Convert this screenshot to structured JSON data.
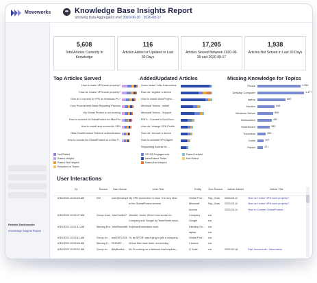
{
  "header": {
    "brand": "Moveworks",
    "title": "Knowledge Base Insights Report",
    "subtitle_prefix": "Showing Data Aggregated over",
    "date_range": "2020-06-30 · 2020-08-17"
  },
  "kpis": [
    {
      "value": "5,608",
      "label": "Total Articles Currently in Knowledge"
    },
    {
      "value": "116",
      "label": "Articles Added or Updated in Last 30 Days"
    },
    {
      "value": "17,205",
      "label": "Articles Served Between 2020-06-30 and 2020-08-17"
    },
    {
      "value": "1,938",
      "label": "Articles Not Served in Last 30 Days"
    }
  ],
  "top_articles": {
    "title": "Top Articles Served",
    "rows": [
      "How to make VPN work properly?",
      "How do I make VPN work properly?",
      "How do I connect to VPN on Windows PC?",
      "Core Procurement Basic Reporting Process",
      "My Global Protect is not working",
      "How to connect to GlobalProtect for Mac Pro",
      "How to install and connect to VPN",
      "Okta Email/Contact Retrieve authentication",
      "How to connect to GlobalProtect on a Mac P..."
    ]
  },
  "added_articles": {
    "title": "Added/Updated Articles",
    "rows": [
      "Zoom Install - Mac Instructions",
      "How do I register a device",
      "How to Install Visio/Project...",
      "Microsoft Teams - Install",
      "Microsoft Teams - Support",
      "PDFs - Convert to Doc/Docx",
      "How do I change VPN Profile",
      "How do I remove a device",
      "How to uninstall VPN Agent",
      "Requesting Access for ..."
    ]
  },
  "legend": [
    {
      "label": "Not Rated",
      "color": "#9b7fd6"
    },
    {
      "label": "Rated Helpful",
      "color": "#c9a3e8"
    },
    {
      "label": "Rated Not Helpful",
      "color": "#e6a244"
    },
    {
      "label": "Resulted in Ticket",
      "color": "#f4c56a"
    },
    {
      "label": "SPOR Engagement",
      "color": "#6a86d8"
    },
    {
      "label": "New/Rated Ticket",
      "color": "#2c4aa8"
    },
    {
      "label": "Rated Not Helpful",
      "color": "#e07a3c"
    },
    {
      "label": "Rated Helpful",
      "color": "#7fc4c9"
    },
    {
      "label": "Not Rated",
      "color": "#e8d36c"
    }
  ],
  "missing_knowledge": {
    "title": "Missing Knowledge for Topics",
    "rows": [
      {
        "label": "Phone",
        "value": "1,359",
        "n": 1359
      },
      {
        "label": "Desktop Computer",
        "value": "1,477",
        "n": 1477
      },
      {
        "label": "laptop",
        "value": "880",
        "n": 880
      },
      {
        "label": "Monitor",
        "value": "546",
        "n": 546
      },
      {
        "label": "Windows Server",
        "value": "509",
        "n": 509
      },
      {
        "label": "Workstation",
        "value": "452",
        "n": 452
      },
      {
        "label": "Smartboard",
        "value": "392",
        "n": 392
      },
      {
        "label": "Touchless",
        "value": "252",
        "n": 252
      },
      {
        "label": "Cable",
        "value": "197",
        "n": 197
      },
      {
        "label": "Printer",
        "value": "171",
        "n": 171
      }
    ]
  },
  "sidebar": {
    "related_label": "Related Dashboards",
    "related_link": "Knowledge Insights Report"
  },
  "interactions": {
    "title": "User Interactions",
    "headers": [
      "Dt",
      "Source",
      "User Name",
      "User Text",
      "Entity",
      "Doc Source",
      "Article Added",
      "Article Title"
    ],
    "rows": [
      [
        "6/30/2020 12:00:29 AM",
        "DM",
        "user@example...",
        "My VPN connection is slow. It is very slow",
        "Global Prot...",
        "Ssp_Gaia",
        "2020-03-11",
        "How do I make VPN work properly?"
      ],
      [
        "",
        "",
        "",
        "to the GlobalProtect servers",
        "Microsoft",
        "Ssp_Gaia",
        "2020-03-11",
        "How do I make VPN work properly?"
      ],
      [
        "",
        "",
        "",
        "",
        "Access",
        "",
        "2020-03-11",
        "How to Connect GlobalProtect..."
      ],
      [
        "6/30/2020 12:02:07 AM",
        "Group channel",
        "JohnSmith47",
        "Jennifer, Under Which how access to",
        "Company",
        "n/a",
        "",
        ""
      ],
      [
        "",
        "",
        "",
        "Company and Google by TeamSmith missi...",
        "Google",
        "n/a",
        "",
        ""
      ],
      [
        "6/30/2020 12:01:11 AM",
        "Missing Knowledge",
        "JohnBrown68",
        "Keyboard backslash work",
        "Desktop Co...",
        "n/a",
        "",
        ""
      ],
      [
        "",
        "",
        "",
        "",
        "laptop",
        "n/a",
        "",
        ""
      ],
      [
        "6/30/2020 12:03:41 AM",
        "Group ch...",
        "aceEDPLS01",
        "Hi, as SPOR. was trying to join a company...",
        "Global Prot...",
        "n/a",
        "",
        ""
      ],
      [
        "6/30/2020 12:03:46 AM",
        "Missing K...",
        "2010907...",
        "Virtual files have been not working",
        "Camera",
        "n/a",
        "",
        ""
      ],
      [
        "6/30/2020 12:05:31 AM",
        "Group ch...",
        "BillyBobKa...",
        "Wi-Fi working on a Network that requires...",
        "G Suite",
        "n/a",
        "2020-01-18",
        "Fast Documents / Information"
      ]
    ]
  }
}
